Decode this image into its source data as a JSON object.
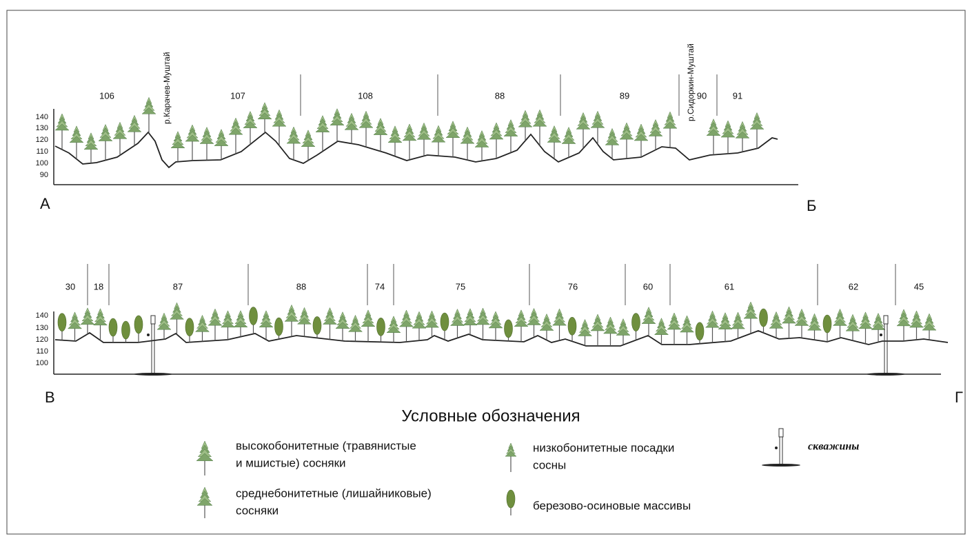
{
  "profiles": [
    {
      "start_label": "А",
      "end_label": "Б",
      "y_ticks": [
        "140",
        "130",
        "120",
        "110",
        "100",
        "90"
      ],
      "sections": [
        "106",
        "107",
        "108",
        "88",
        "89",
        "90",
        "91"
      ],
      "rivers": [
        "р.Карачев-Муштай",
        "р.Сидоркин-Муштай"
      ]
    },
    {
      "start_label": "В",
      "end_label": "Г",
      "y_ticks": [
        "140",
        "130",
        "120",
        "110",
        "100"
      ],
      "sections": [
        "30",
        "18",
        "87",
        "88",
        "74",
        "75",
        "76",
        "60",
        "61",
        "62",
        "45"
      ]
    }
  ],
  "legend": {
    "title": "Условные обозначения",
    "items": [
      {
        "lines": [
          "высокобонитетные (травянистые",
          "и мшистые) сосняки"
        ]
      },
      {
        "lines": [
          "среднебонитетные (лишайниковые)",
          "сосняки"
        ]
      },
      {
        "lines": [
          "низкобонитетные посадки",
          "сосны"
        ]
      },
      {
        "lines": [
          "березово-осиновые массивы"
        ]
      },
      {
        "lines": [
          "скважины"
        ]
      }
    ]
  }
}
